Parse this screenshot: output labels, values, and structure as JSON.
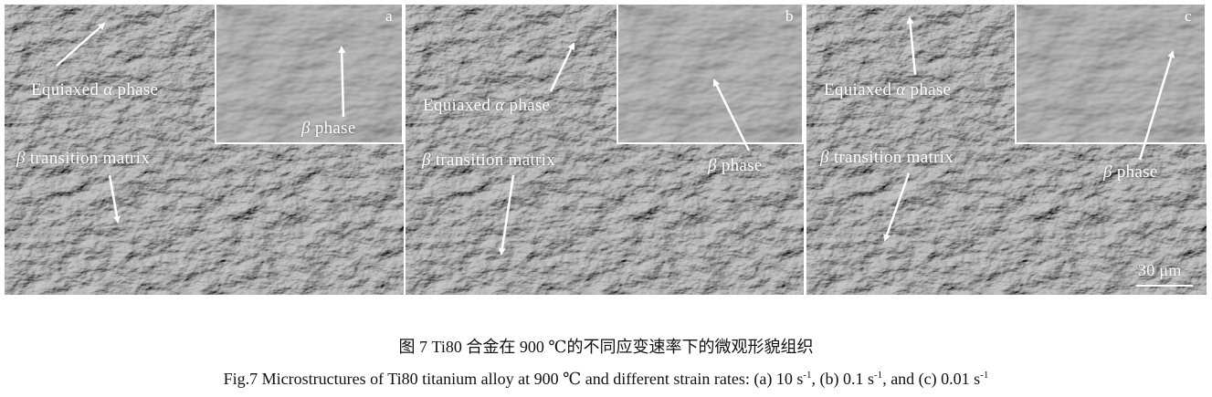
{
  "figure": {
    "panels": [
      {
        "id": "a",
        "label": "a",
        "alpha_label": "Equiaxed ",
        "alpha_symbol": "α",
        "alpha_suffix": " phase",
        "matrix_symbol": "β",
        "matrix_label": " transition matrix",
        "inset_symbol": "β",
        "inset_label": " phase"
      },
      {
        "id": "b",
        "label": "b",
        "alpha_label": "Equiaxed ",
        "alpha_symbol": "α",
        "alpha_suffix": " phase",
        "matrix_symbol": "β",
        "matrix_label": " transition matrix",
        "inset_symbol": "β",
        "inset_label": " phase"
      },
      {
        "id": "c",
        "label": "c",
        "alpha_label": "Equiaxed ",
        "alpha_symbol": "α",
        "alpha_suffix": " phase",
        "matrix_symbol": "β",
        "matrix_label": " transition matrix",
        "inset_symbol": "β",
        "inset_label": " phase"
      }
    ],
    "scale_bar": "30 μm"
  },
  "caption": {
    "chinese": "图 7   Ti80 合金在 900 ℃的不同应变速率下的微观形貌组织",
    "english_prefix": "Fig.7    Microstructures of Ti80 titanium alloy at 900  ℃  and different strain rates: (a) 10 s",
    "sup": "-1",
    "english_b": ", (b) 0.1 s",
    "english_c": ", and (c) 0.01 s"
  }
}
